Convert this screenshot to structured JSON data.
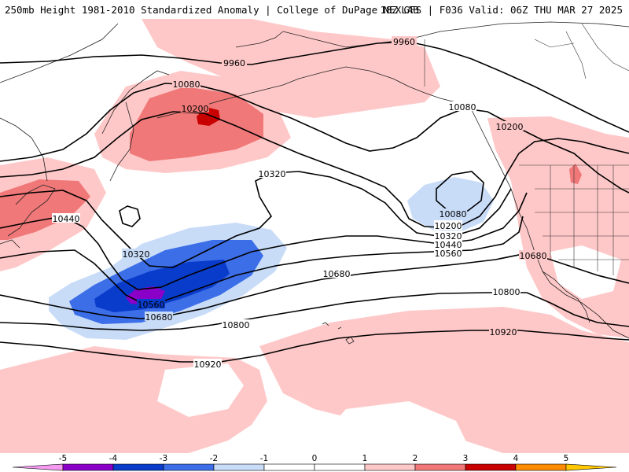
{
  "header": {
    "title": "250mb Height 1981-2010 Standardized Anomaly | College of DuPage NEXLAB",
    "run_info": "18Z GFS | F036 Valid: 06Z THU MAR 27 2025"
  },
  "contour_labels": [
    "9960",
    "9960",
    "10080",
    "10080",
    "10200",
    "10200",
    "10200",
    "10080",
    "10320",
    "10320",
    "10440",
    "10440",
    "10320",
    "10560",
    "10560",
    "10680",
    "10680",
    "10680",
    "10800",
    "10800",
    "10920",
    "10920"
  ],
  "colorbar": {
    "ticks": [
      "-5",
      "-4",
      "-3",
      "-2",
      "-1",
      "0",
      "1",
      "2",
      "3",
      "4",
      "5"
    ],
    "colors": {
      "lt-5": "#f59af0",
      "-5to-4": "#8a00c8",
      "-4to-3": "#0a3ccc",
      "-3to-2": "#3c6ee8",
      "-2to-1": "#c8dcf8",
      "-1to1": "#ffffff",
      "1to2": "#ffc8c8",
      "2to3": "#f07878",
      "3to4": "#c80000",
      "4to5": "#ff8c00",
      "gt5": "#ffc800"
    }
  }
}
